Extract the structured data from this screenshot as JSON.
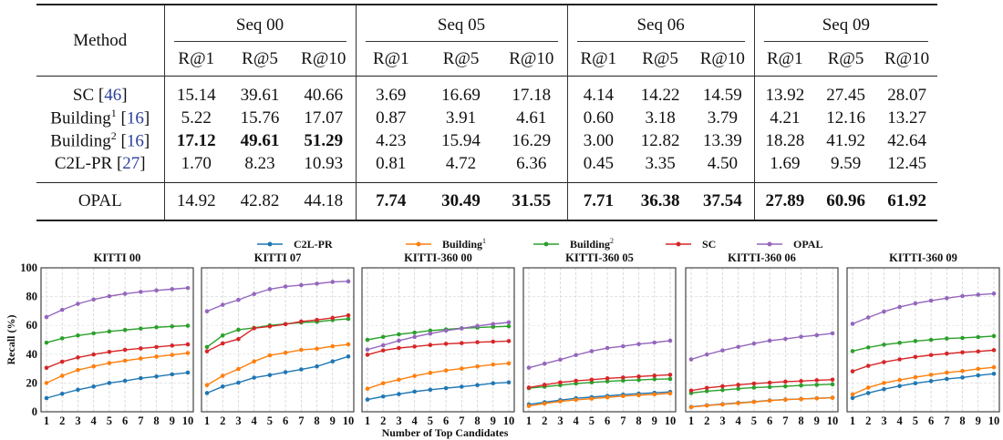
{
  "table": {
    "method_header": "Method",
    "groups": [
      "Seq 00",
      "Seq 05",
      "Seq 06",
      "Seq 09"
    ],
    "metrics": [
      "R@1",
      "R@5",
      "R@10"
    ],
    "rows": [
      {
        "name": "SC",
        "sup": "",
        "cite": "46",
        "values": [
          "15.14",
          "39.61",
          "40.66",
          "3.69",
          "16.69",
          "17.18",
          "4.14",
          "14.22",
          "14.59",
          "13.92",
          "27.45",
          "28.07"
        ],
        "bold": [
          0,
          0,
          0,
          0,
          0,
          0,
          0,
          0,
          0,
          0,
          0,
          0
        ]
      },
      {
        "name": "Building",
        "sup": "1",
        "cite": "16",
        "values": [
          "5.22",
          "15.76",
          "17.07",
          "0.87",
          "3.91",
          "4.61",
          "0.60",
          "3.18",
          "3.79",
          "4.21",
          "12.16",
          "13.27"
        ],
        "bold": [
          0,
          0,
          0,
          0,
          0,
          0,
          0,
          0,
          0,
          0,
          0,
          0
        ]
      },
      {
        "name": "Building",
        "sup": "2",
        "cite": "16",
        "values": [
          "17.12",
          "49.61",
          "51.29",
          "4.23",
          "15.94",
          "16.29",
          "3.00",
          "12.82",
          "13.39",
          "18.28",
          "41.92",
          "42.64"
        ],
        "bold": [
          1,
          1,
          1,
          0,
          0,
          0,
          0,
          0,
          0,
          0,
          0,
          0
        ]
      },
      {
        "name": "C2L-PR",
        "sup": "",
        "cite": "27",
        "values": [
          "1.70",
          "8.23",
          "10.93",
          "0.81",
          "4.72",
          "6.36",
          "0.45",
          "3.35",
          "4.50",
          "1.69",
          "9.59",
          "12.45"
        ],
        "bold": [
          0,
          0,
          0,
          0,
          0,
          0,
          0,
          0,
          0,
          0,
          0,
          0
        ]
      },
      {
        "name": "OPAL",
        "sup": "",
        "cite": "",
        "values": [
          "14.92",
          "42.82",
          "44.18",
          "7.74",
          "30.49",
          "31.55",
          "7.71",
          "36.38",
          "37.54",
          "27.89",
          "60.96",
          "61.92"
        ],
        "bold": [
          0,
          0,
          0,
          1,
          1,
          1,
          1,
          1,
          1,
          1,
          1,
          1
        ]
      }
    ],
    "cite_color": "#2b3f9c"
  },
  "chart_data": {
    "type": "line",
    "ylabel": "Recall (%)",
    "xlabel": "Number of Top Candidates",
    "ylim": [
      0,
      100
    ],
    "yticks": [
      0,
      20,
      40,
      60,
      80,
      100
    ],
    "x": [
      1,
      2,
      3,
      4,
      5,
      6,
      7,
      8,
      9,
      10
    ],
    "grid": true,
    "legend_placement": "top-center",
    "legend": [
      {
        "name": "C2L-PR",
        "sup": "",
        "color": "#1f77b4"
      },
      {
        "name": "Building",
        "sup": "1",
        "color": "#ff7f0e"
      },
      {
        "name": "Building",
        "sup": "2",
        "color": "#2ca02c"
      },
      {
        "name": "SC",
        "sup": "",
        "color": "#d62728"
      },
      {
        "name": "OPAL",
        "sup": "",
        "color": "#9467bd"
      }
    ],
    "panels": [
      {
        "title": "KITTI 00",
        "series": [
          [
            9.5,
            12.5,
            15.3,
            17.5,
            20,
            21.5,
            23.3,
            24.5,
            26,
            27.2
          ],
          [
            20,
            25,
            29,
            31.5,
            33.8,
            35.5,
            37,
            38.3,
            39.5,
            40.8
          ],
          [
            48,
            51,
            53,
            54.5,
            55.8,
            56.8,
            57.8,
            58.7,
            59.3,
            59.8
          ],
          [
            30.5,
            34.8,
            37.7,
            39.8,
            41.6,
            43,
            44,
            45,
            46,
            46.8
          ],
          [
            65.8,
            70.8,
            75,
            78,
            80.3,
            82,
            83.3,
            84.3,
            85.2,
            86
          ]
        ]
      },
      {
        "title": "KITTI 07",
        "series": [
          [
            13,
            17.5,
            20.2,
            23.7,
            25.5,
            27.5,
            29.4,
            31.5,
            35,
            38.4
          ],
          [
            18.5,
            25,
            29.7,
            35,
            39.2,
            41,
            43,
            43.8,
            45.5,
            46.8
          ],
          [
            45,
            53,
            57,
            58.3,
            60,
            61,
            62,
            62.5,
            63.7,
            64.5
          ],
          [
            42,
            47.5,
            50.5,
            58,
            59.3,
            60.8,
            62.7,
            63.8,
            65.2,
            67
          ],
          [
            69.8,
            74.3,
            77.7,
            81.8,
            85.2,
            87,
            88,
            89,
            90.2,
            90.6
          ]
        ]
      },
      {
        "title": "KITTI-360 00",
        "series": [
          [
            8.5,
            10.6,
            12.3,
            14,
            15.3,
            16.4,
            17.4,
            18.5,
            19.8,
            20.4
          ],
          [
            16,
            19.8,
            22.3,
            24.9,
            27,
            28.7,
            30,
            31.5,
            32.8,
            33.6
          ],
          [
            50,
            52,
            53.8,
            55,
            56.4,
            57.2,
            58,
            58.5,
            59,
            59.4
          ],
          [
            39.6,
            42.6,
            44.3,
            45.3,
            46.4,
            47.2,
            47.7,
            48.3,
            48.7,
            49.1
          ],
          [
            43.2,
            46.2,
            49.4,
            52,
            54.3,
            56.4,
            57.9,
            59.6,
            61,
            62.1
          ]
        ]
      },
      {
        "title": "KITTI-360 05",
        "series": [
          [
            5.1,
            6.6,
            8.1,
            9.4,
            10.2,
            11,
            11.9,
            12.6,
            13.2,
            13.8
          ],
          [
            4,
            5.7,
            7.2,
            8.3,
            9.1,
            10,
            10.9,
            11.5,
            12.1,
            12.8
          ],
          [
            16.4,
            17.4,
            18.5,
            19.6,
            20.4,
            21.1,
            21.7,
            22.1,
            22.6,
            22.8
          ],
          [
            16.8,
            18.7,
            20.4,
            21.5,
            22.3,
            23.2,
            23.8,
            24.5,
            25.1,
            25.7
          ],
          [
            30.6,
            33.4,
            36.2,
            39.4,
            42.1,
            44.3,
            45.5,
            47,
            48.1,
            49.4
          ]
        ]
      },
      {
        "title": "KITTI-360 06",
        "series": [
          [
            3.4,
            4.5,
            5.3,
            6.2,
            7,
            7.9,
            8.5,
            8.9,
            9.4,
            9.8
          ],
          [
            3.2,
            4.3,
            5.1,
            6,
            6.8,
            7.7,
            8.4,
            8.8,
            9.3,
            9.7
          ],
          [
            13,
            14.3,
            15.1,
            16,
            16.8,
            17.2,
            17.7,
            18.3,
            18.7,
            19.1
          ],
          [
            14.7,
            16.6,
            17.7,
            18.7,
            19.6,
            20.2,
            20.9,
            21.3,
            21.9,
            22.3
          ],
          [
            36.4,
            39.8,
            42.6,
            45.1,
            47.4,
            49.4,
            50.6,
            52.1,
            53.2,
            54.5
          ]
        ]
      },
      {
        "title": "KITTI-360 09",
        "series": [
          [
            9.6,
            13,
            15.7,
            17.9,
            19.8,
            21.3,
            22.8,
            23.8,
            25.3,
            26.4
          ],
          [
            12.1,
            16.8,
            20,
            22.1,
            24,
            25.7,
            27.2,
            28.3,
            29.8,
            30.9
          ],
          [
            42.1,
            44.7,
            46.6,
            47.9,
            49.1,
            50,
            50.9,
            51.3,
            51.9,
            52.6
          ],
          [
            28.1,
            31.9,
            34.5,
            36.4,
            38.1,
            39.4,
            40.4,
            41.3,
            41.9,
            42.8
          ],
          [
            61.1,
            65.5,
            69.6,
            72.8,
            75.3,
            77.2,
            78.9,
            80.4,
            81.3,
            82.1
          ]
        ]
      }
    ]
  }
}
